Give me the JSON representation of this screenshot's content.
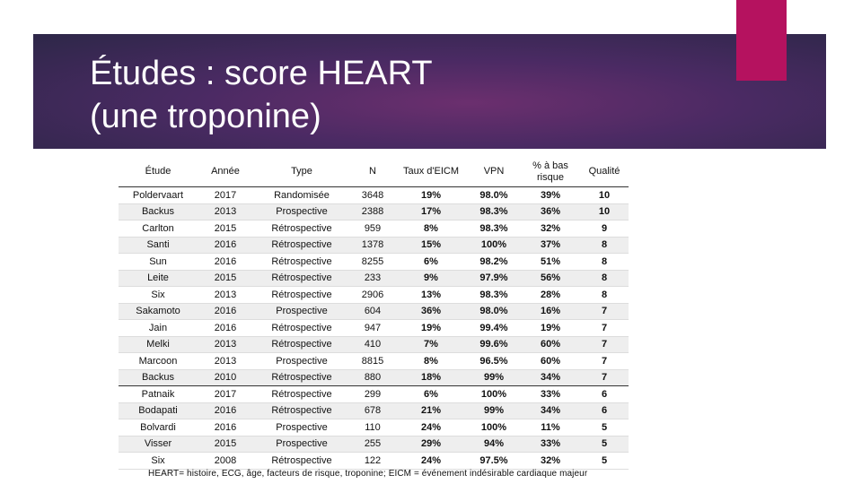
{
  "slide": {
    "title_line1": "Études : score HEART",
    "title_line2": "(une troponine)",
    "accent_color": "#b5125f"
  },
  "table": {
    "headers": [
      "Étude",
      "Année",
      "Type",
      "N",
      "Taux d'EICM",
      "VPN",
      "% à bas risque",
      "Qualité"
    ],
    "rows": [
      [
        "Poldervaart",
        "2017",
        "Randomisée",
        "3648",
        "19%",
        "98.0%",
        "39%",
        "10"
      ],
      [
        "Backus",
        "2013",
        "Prospective",
        "2388",
        "17%",
        "98.3%",
        "36%",
        "10"
      ],
      [
        "Carlton",
        "2015",
        "Rétrospective",
        "959",
        "8%",
        "98.3%",
        "32%",
        "9"
      ],
      [
        "Santi",
        "2016",
        "Rétrospective",
        "1378",
        "15%",
        "100%",
        "37%",
        "8"
      ],
      [
        "Sun",
        "2016",
        "Rétrospective",
        "8255",
        "6%",
        "98.2%",
        "51%",
        "8"
      ],
      [
        "Leite",
        "2015",
        "Rétrospective",
        "233",
        "9%",
        "97.9%",
        "56%",
        "8"
      ],
      [
        "Six",
        "2013",
        "Rétrospective",
        "2906",
        "13%",
        "98.3%",
        "28%",
        "8"
      ],
      [
        "Sakamoto",
        "2016",
        "Prospective",
        "604",
        "36%",
        "98.0%",
        "16%",
        "7"
      ],
      [
        "Jain",
        "2016",
        "Rétrospective",
        "947",
        "19%",
        "99.4%",
        "19%",
        "7"
      ],
      [
        "Melki",
        "2013",
        "Rétrospective",
        "410",
        "7%",
        "99.6%",
        "60%",
        "7"
      ],
      [
        "Marcoon",
        "2013",
        "Prospective",
        "8815",
        "8%",
        "96.5%",
        "60%",
        "7"
      ],
      [
        "Backus",
        "2010",
        "Rétrospective",
        "880",
        "18%",
        "99%",
        "34%",
        "7"
      ],
      [
        "Patnaik",
        "2017",
        "Rétrospective",
        "299",
        "6%",
        "100%",
        "33%",
        "6"
      ],
      [
        "Bodapati",
        "2016",
        "Rétrospective",
        "678",
        "21%",
        "99%",
        "34%",
        "6"
      ],
      [
        "Bolvardi",
        "2016",
        "Prospective",
        "110",
        "24%",
        "100%",
        "11%",
        "5"
      ],
      [
        "Visser",
        "2015",
        "Prospective",
        "255",
        "29%",
        "94%",
        "33%",
        "5"
      ],
      [
        "Six",
        "2008",
        "Rétrospective",
        "122",
        "24%",
        "97.5%",
        "32%",
        "5"
      ]
    ]
  },
  "footnote": "HEART= histoire, ECG, âge, facteurs de risque, troponine; EICM = événement indésirable cardiaque majeur"
}
